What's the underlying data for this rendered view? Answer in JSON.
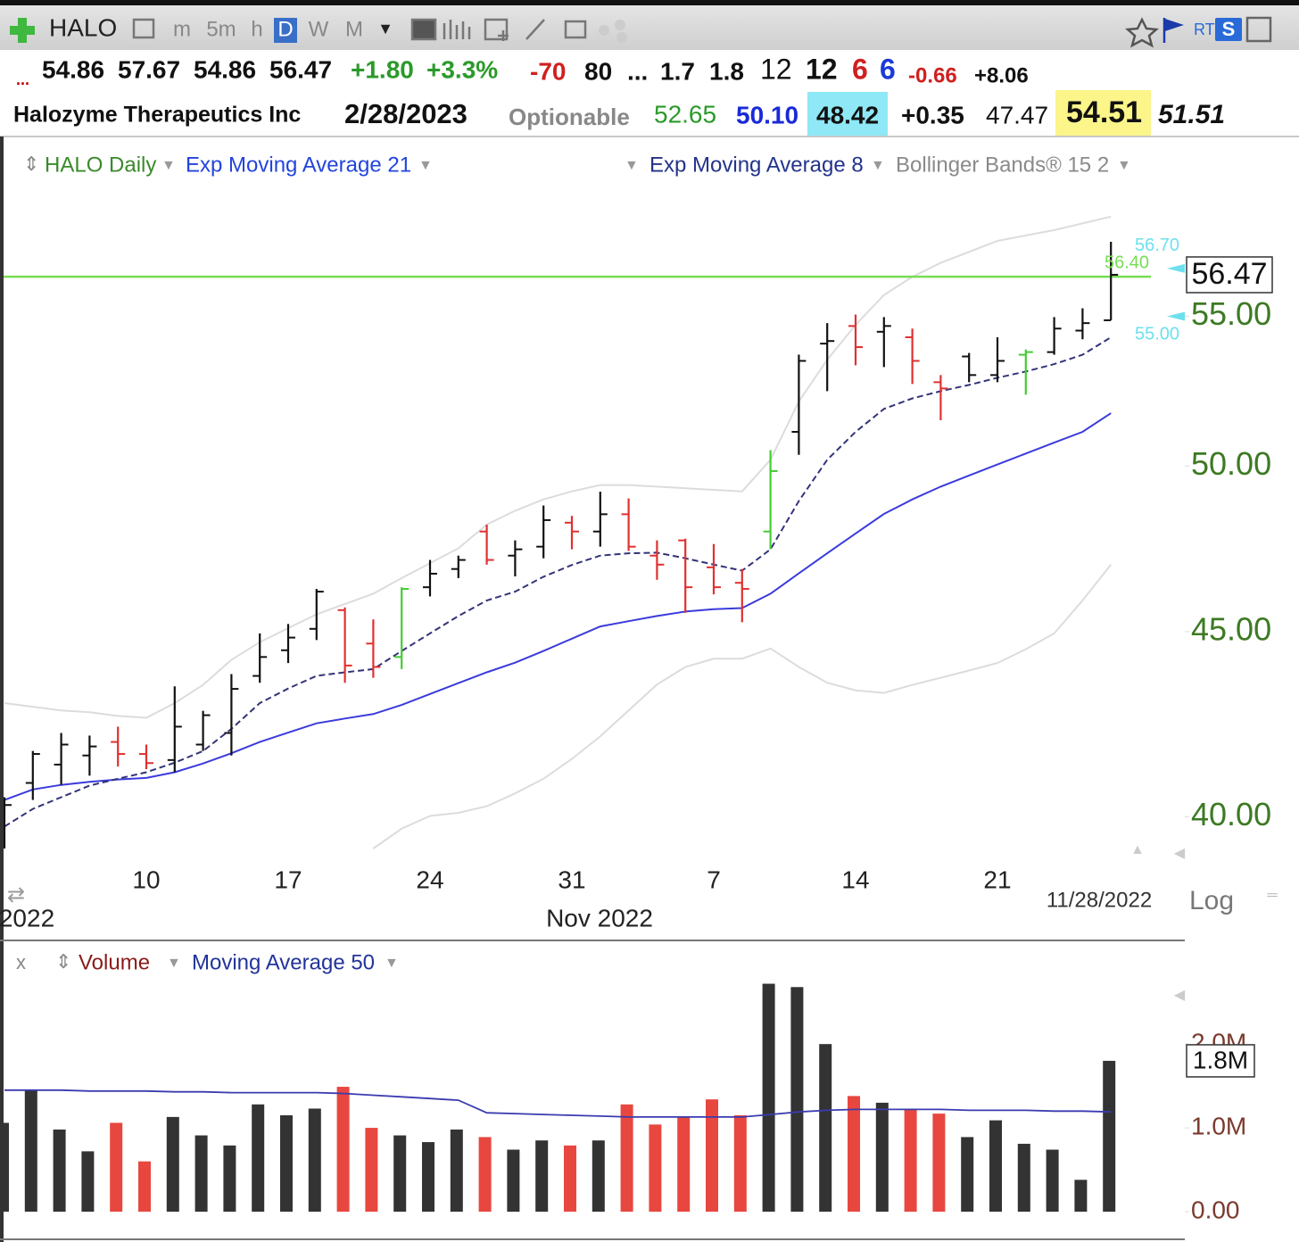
{
  "toolbar": {
    "symbol": "HALO",
    "intervals": [
      "m",
      "5m",
      "h",
      "D",
      "W",
      "M"
    ],
    "active": "D",
    "right_labels": [
      "RT",
      "S"
    ]
  },
  "quote": {
    "row1": [
      "...",
      "54.86",
      "57.67",
      "54.86",
      "56.47",
      "+1.80",
      "+3.3%",
      "-70",
      "80",
      "...",
      "1.7",
      "1.8",
      "12",
      "12",
      "6",
      "6",
      "-0.66",
      "+8.06"
    ],
    "row2": [
      "Halozyme Therapeutics Inc",
      "2/28/2023",
      "Optionable",
      "52.65",
      "50.10",
      "48.42",
      "+0.35",
      "47.47",
      "54.51",
      "51.51"
    ]
  },
  "chart_data": [
    {
      "type": "ohlc",
      "categories": [
        null,
        null,
        null,
        null,
        null,
        "10",
        null,
        null,
        null,
        null,
        "17",
        null,
        null,
        null,
        null,
        "24",
        null,
        null,
        null,
        null,
        "31",
        null,
        null,
        null,
        null,
        "7",
        null,
        null,
        null,
        null,
        "14",
        null,
        null,
        null,
        null,
        "21",
        null,
        null,
        null,
        null
      ],
      "month_labels": [
        "2022",
        "Nov 2022"
      ],
      "cursor_date": "11/28/2022",
      "scale_label": "Log",
      "log_scale": true,
      "grid": false,
      "ohlc": {
        "name": "HALO Daily",
        "open": [
          39.5,
          40.87,
          41.35,
          41.59,
          41.95,
          41.63,
          41.47,
          41.88,
          42.19,
          43.75,
          44.47,
          45.08,
          45.62,
          44.66,
          44.28,
          46.29,
          46.83,
          47.96,
          47.23,
          47.5,
          48.23,
          47.96,
          48.49,
          47.23,
          47.69,
          46.88,
          46.42,
          47.96,
          51.1,
          54.05,
          54.66,
          54.46,
          54.27,
          52.74,
          53.61,
          52.98,
          53.67,
          53.76,
          54.5,
          54.86
        ],
        "high": [
          40.5,
          41.71,
          42.19,
          42.12,
          42.36,
          41.88,
          43.46,
          42.79,
          43.8,
          44.95,
          45.22,
          46.24,
          45.7,
          45.35,
          46.29,
          47.1,
          47.23,
          48.17,
          47.69,
          48.76,
          48.44,
          49.19,
          48.98,
          47.69,
          47.74,
          47.58,
          46.83,
          50.51,
          53.67,
          54.76,
          55.06,
          54.97,
          54.57,
          52.98,
          53.73,
          54.27,
          53.85,
          54.97,
          55.28,
          57.67
        ],
        "low": [
          39.2,
          40.43,
          40.82,
          41.06,
          41.3,
          41.23,
          41.15,
          41.71,
          41.59,
          43.56,
          44.11,
          44.76,
          43.56,
          43.7,
          43.94,
          46.02,
          46.56,
          46.96,
          46.61,
          47.15,
          47.42,
          47.5,
          47.37,
          46.51,
          45.54,
          46.08,
          45.27,
          47.42,
          50.36,
          52.44,
          53.31,
          53.25,
          52.68,
          51.48,
          52.74,
          52.74,
          52.32,
          53.67,
          54.2,
          54.86
        ],
        "close": [
          40.3,
          41.63,
          41.88,
          41.83,
          41.63,
          41.39,
          42.36,
          42.67,
          43.39,
          44.28,
          44.83,
          46.16,
          44.04,
          44.0,
          46.24,
          46.69,
          47.1,
          47.1,
          47.42,
          48.31,
          47.96,
          48.49,
          47.5,
          46.96,
          46.29,
          46.29,
          46.24,
          49.84,
          53.46,
          54.14,
          53.93,
          54.66,
          53.46,
          52.53,
          52.98,
          53.46,
          53.76,
          54.57,
          54.76,
          56.47
        ],
        "colors": [
          "#111111",
          "#111111",
          "#111111",
          "#111111",
          "#e03030",
          "#e03030",
          "#111111",
          "#111111",
          "#111111",
          "#111111",
          "#111111",
          "#111111",
          "#e03030",
          "#e03030",
          "#44cc33",
          "#111111",
          "#111111",
          "#e03030",
          "#111111",
          "#111111",
          "#e03030",
          "#111111",
          "#e03030",
          "#e03030",
          "#e03030",
          "#e03030",
          "#e03030",
          "#44cc33",
          "#111111",
          "#111111",
          "#e03030",
          "#111111",
          "#e03030",
          "#e03030",
          "#111111",
          "#111111",
          "#44cc33",
          "#111111",
          "#111111",
          "#111111"
        ]
      },
      "series": [
        {
          "name": "Exp Moving Average 21",
          "color": "#3b3bdc",
          "dashed": false,
          "values": [
            40.43,
            40.7,
            40.82,
            40.9,
            40.96,
            41.0,
            41.15,
            41.38,
            41.65,
            41.95,
            42.2,
            42.45,
            42.58,
            42.7,
            42.95,
            43.25,
            43.55,
            43.85,
            44.12,
            44.45,
            44.8,
            45.15,
            45.3,
            45.45,
            45.58,
            45.65,
            45.68,
            46.1,
            46.7,
            47.3,
            47.9,
            48.5,
            48.95,
            49.35,
            49.7,
            50.05,
            50.4,
            50.75,
            51.1,
            51.71
          ]
        },
        {
          "name": "Exp Moving Average 8",
          "color": "#33337a",
          "dashed": true,
          "values": [
            39.75,
            40.2,
            40.5,
            40.8,
            40.98,
            41.15,
            41.4,
            41.71,
            42.3,
            43.0,
            43.4,
            43.75,
            43.85,
            43.94,
            44.45,
            44.95,
            45.45,
            45.9,
            46.16,
            46.6,
            46.95,
            47.23,
            47.3,
            47.32,
            47.15,
            46.96,
            46.78,
            47.42,
            48.9,
            50.2,
            51.1,
            51.85,
            52.2,
            52.44,
            52.65,
            52.89,
            53.1,
            53.35,
            53.67,
            54.27
          ]
        }
      ],
      "bands": {
        "name": "Bollinger Bands® 15 2",
        "color": "#dcdcdc",
        "upper": [
          43.0,
          42.9,
          42.8,
          42.75,
          42.65,
          42.6,
          43.0,
          43.5,
          44.2,
          44.7,
          45.1,
          45.5,
          45.8,
          46.1,
          46.56,
          47.0,
          47.45,
          48.17,
          48.6,
          48.95,
          49.2,
          49.4,
          49.4,
          49.35,
          49.3,
          49.25,
          49.2,
          50.2,
          52.1,
          53.5,
          54.7,
          55.75,
          56.4,
          56.9,
          57.3,
          57.7,
          57.9,
          58.1,
          58.35,
          58.6
        ],
        "lower": [
          null,
          null,
          null,
          null,
          null,
          null,
          null,
          null,
          null,
          null,
          null,
          null,
          null,
          39.2,
          39.7,
          40.02,
          40.1,
          40.27,
          40.6,
          40.98,
          41.5,
          42.1,
          42.8,
          43.51,
          44.0,
          44.23,
          44.23,
          44.52,
          44.0,
          43.56,
          43.35,
          43.28,
          43.5,
          43.7,
          43.9,
          44.11,
          44.5,
          44.95,
          45.9,
          46.96
        ]
      },
      "ylim": [
        39,
        59.7
      ],
      "yticks": [
        {
          "value": 40,
          "label": "40.00"
        },
        {
          "value": 45,
          "label": "45.00"
        },
        {
          "value": 50,
          "label": "50.00"
        },
        {
          "value": 55,
          "label": "55.00"
        }
      ],
      "last_price": 56.47,
      "horizontal_line": {
        "value": 56.4,
        "label": "56.40",
        "color": "#77dd55"
      },
      "level_color": "#6de0ee",
      "level_labels": [
        {
          "value": 56.7,
          "label": "56.70"
        },
        {
          "value": 55,
          "label": "55.00"
        }
      ]
    },
    {
      "type": "bar",
      "close_label": "x",
      "series": [
        {
          "name": "Volume",
          "values": [
            1060000,
            1450000,
            980000,
            720000,
            1060000,
            600000,
            1130000,
            910000,
            790000,
            1280000,
            1150000,
            1230000,
            1490000,
            1000000,
            910000,
            830000,
            980000,
            890000,
            740000,
            850000,
            790000,
            850000,
            1280000,
            1040000,
            1130000,
            1340000,
            1150000,
            2720000,
            2680000,
            2000000,
            1380000,
            1300000,
            1230000,
            1170000,
            890000,
            1090000,
            810000,
            740000,
            380000,
            1800000
          ],
          "colors": [
            "#333333",
            "#333333",
            "#333333",
            "#333333",
            "#e8473f",
            "#e8473f",
            "#333333",
            "#333333",
            "#333333",
            "#333333",
            "#333333",
            "#333333",
            "#e8473f",
            "#e8473f",
            "#333333",
            "#333333",
            "#333333",
            "#e8473f",
            "#333333",
            "#333333",
            "#e8473f",
            "#333333",
            "#e8473f",
            "#e8473f",
            "#e8473f",
            "#e8473f",
            "#e8473f",
            "#333333",
            "#333333",
            "#333333",
            "#e8473f",
            "#333333",
            "#e8473f",
            "#e8473f",
            "#333333",
            "#333333",
            "#333333",
            "#333333",
            "#333333",
            "#333333"
          ]
        },
        {
          "name": "Moving Average 50",
          "color": "#3b3bb0",
          "values": [
            1450000,
            1450000,
            1450000,
            1440000,
            1440000,
            1440000,
            1430000,
            1430000,
            1420000,
            1420000,
            1420000,
            1420000,
            1410000,
            1390000,
            1370000,
            1350000,
            1330000,
            1180000,
            1170000,
            1160000,
            1150000,
            1140000,
            1130000,
            1130000,
            1130000,
            1130000,
            1130000,
            1160000,
            1190000,
            1210000,
            1220000,
            1220000,
            1220000,
            1220000,
            1210000,
            1210000,
            1210000,
            1200000,
            1200000,
            1190000
          ]
        }
      ],
      "ylim": [
        0,
        2960000
      ],
      "yticks": [
        {
          "value": 0,
          "label": "0.00"
        },
        {
          "value": 1000000,
          "label": "1.0M"
        },
        {
          "value": 2000000,
          "label": "2.0M"
        }
      ],
      "last_value": {
        "value": 1800000,
        "label": "1.8M"
      }
    }
  ]
}
